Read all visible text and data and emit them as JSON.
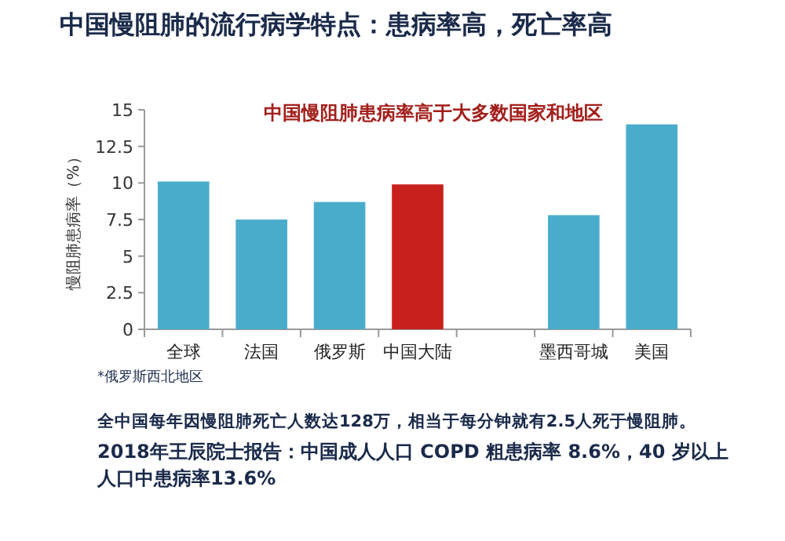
{
  "chart_data": {
    "type": "bar",
    "title": "中国慢阻肺的流行病学特点：患病率高，死亡率高",
    "subtitle": "中国慢阻肺患病率高于大多数国家和地区",
    "ylabel": "慢阻肺患病率（%）",
    "categories": [
      "全球",
      "法国",
      "俄罗斯",
      "中国大陆",
      null,
      "墨西哥城",
      "美国"
    ],
    "values": [
      10.1,
      7.5,
      8.7,
      9.9,
      null,
      7.8,
      14.0
    ],
    "colors": [
      "#4aaccb",
      "#4aaccb",
      "#4aaccb",
      "#c8201c",
      null,
      "#4aaccb",
      "#4aaccb"
    ],
    "ylim": [
      0,
      15
    ],
    "yticks": [
      0,
      2.5,
      5,
      7.5,
      10,
      12.5,
      15
    ],
    "annotations": [
      "*俄罗斯西北地区",
      "全中国每年因慢阻肺死亡人数达128万，相当于每分钟就有2.5人死于慢阻肺。",
      "2018年王辰院士报告：中国成人人口 COPD 粗患病率 8.6%，40 岁以上人口中患病率13.6%"
    ]
  }
}
